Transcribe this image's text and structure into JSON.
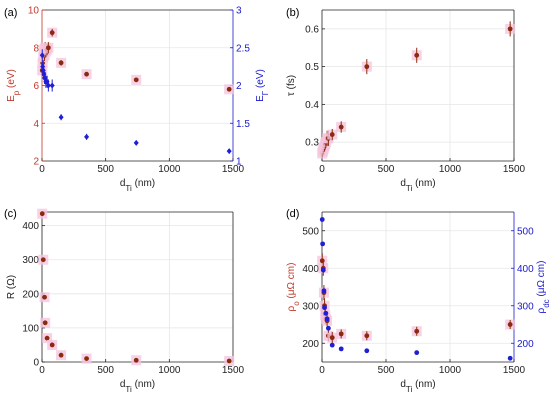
{
  "figure": {
    "panels": [
      {
        "id": "a",
        "panel_label": "(a)"
      },
      {
        "id": "b",
        "panel_label": "(b)"
      },
      {
        "id": "c",
        "panel_label": "(c)"
      },
      {
        "id": "d",
        "panel_label": "(d)"
      }
    ]
  },
  "colors": {
    "marker_red": "#8b2a0e",
    "marker_pink_halo": "#f5c6de",
    "marker_blue": "#1f1fd6",
    "axis_red": "#c0392b",
    "axis_blue": "#1a1acc",
    "grid": "#e6e6e6",
    "axis_black": "#222222"
  },
  "chart_data": [
    {
      "panel": "a",
      "type": "scatter",
      "title": "",
      "xlabel": "d_Ti (nm)",
      "xlim": [
        0,
        1500
      ],
      "xticks": [
        0,
        500,
        1000,
        1500
      ],
      "ylabel_left": "E_p (eV)",
      "ylim_left": [
        2,
        10
      ],
      "yticks_left": [
        2,
        4,
        6,
        8,
        10
      ],
      "ylabel_right": "E_Γ (eV)",
      "ylim_right": [
        1,
        3
      ],
      "yticks_right": [
        1,
        1.5,
        2,
        2.5,
        3
      ],
      "grid": true,
      "series": [
        {
          "axis": "left",
          "color": "red",
          "x": [
            2,
            5,
            10,
            15,
            20,
            25,
            30,
            40,
            50,
            80,
            150,
            350,
            740,
            1470
          ],
          "y": [
            6.8,
            7.2,
            7.5,
            7.9,
            7.6,
            8.0,
            7.8,
            7.9,
            8.0,
            8.8,
            7.2,
            6.6,
            6.3,
            5.8
          ],
          "err": [
            0.3,
            0.3,
            0.3,
            0.3,
            0.3,
            0.3,
            0.3,
            0.3,
            0.3,
            0.2,
            0.15,
            0.1,
            0.1,
            0.1
          ]
        },
        {
          "axis": "right",
          "color": "blue",
          "x": [
            2,
            5,
            10,
            15,
            20,
            25,
            30,
            40,
            50,
            80,
            150,
            350,
            740,
            1470
          ],
          "y": [
            2.4,
            2.25,
            2.2,
            2.15,
            2.1,
            2.1,
            2.05,
            2.05,
            2.0,
            2.0,
            1.58,
            1.32,
            1.24,
            1.13
          ],
          "err": [
            0.08,
            0.08,
            0.08,
            0.08,
            0.08,
            0.08,
            0.08,
            0.08,
            0.08,
            0.08,
            0.04,
            0.04,
            0.03,
            0.03
          ]
        }
      ]
    },
    {
      "panel": "b",
      "type": "scatter",
      "title": "",
      "xlabel": "d_Ti (nm)",
      "xlim": [
        0,
        1500
      ],
      "xticks": [
        0,
        500,
        1000,
        1500
      ],
      "ylabel": "τ (fs)",
      "ylim": [
        0.25,
        0.65
      ],
      "yticks": [
        0.3,
        0.4,
        0.5,
        0.6
      ],
      "grid": true,
      "series": [
        {
          "color": "red",
          "x": [
            2,
            5,
            10,
            15,
            20,
            25,
            30,
            40,
            50,
            80,
            150,
            350,
            740,
            1470
          ],
          "y": [
            0.27,
            0.275,
            0.28,
            0.285,
            0.29,
            0.295,
            0.3,
            0.31,
            0.31,
            0.32,
            0.34,
            0.5,
            0.53,
            0.6
          ],
          "err": [
            0.01,
            0.01,
            0.01,
            0.01,
            0.015,
            0.015,
            0.015,
            0.02,
            0.02,
            0.015,
            0.015,
            0.02,
            0.02,
            0.02
          ]
        }
      ]
    },
    {
      "panel": "c",
      "type": "scatter",
      "title": "",
      "xlabel": "d_Ti (nm)",
      "xlim": [
        0,
        1500
      ],
      "xticks": [
        0,
        500,
        1000,
        1500
      ],
      "ylabel": "R (Ω)",
      "ylim": [
        0,
        440
      ],
      "yticks": [
        0,
        100,
        200,
        300,
        400
      ],
      "grid": true,
      "series": [
        {
          "color": "red",
          "x": [
            2,
            10,
            20,
            25,
            40,
            80,
            150,
            350,
            740,
            1470
          ],
          "y": [
            435,
            300,
            190,
            115,
            70,
            50,
            20,
            10,
            5,
            3
          ]
        }
      ]
    },
    {
      "panel": "d",
      "type": "scatter",
      "title": "",
      "xlabel": "d_Ti (nm)",
      "xlim": [
        0,
        1500
      ],
      "xticks": [
        0,
        500,
        1000,
        1500
      ],
      "ylabel_left": "ρ_o (μΩ cm)",
      "ylim_left": [
        150,
        550
      ],
      "yticks_left": [
        200,
        300,
        400,
        500
      ],
      "ylabel_right": "ρ_dc (μΩ cm)",
      "ylim_right": [
        150,
        550
      ],
      "yticks_right": [
        200,
        300,
        400,
        500
      ],
      "grid": true,
      "series": [
        {
          "axis": "left",
          "color": "red",
          "x": [
            2,
            10,
            15,
            20,
            25,
            30,
            40,
            50,
            80,
            150,
            350,
            740,
            1470
          ],
          "y": [
            420,
            400,
            335,
            300,
            275,
            265,
            260,
            220,
            215,
            225,
            220,
            232,
            250
          ],
          "err": [
            20,
            20,
            20,
            20,
            15,
            15,
            15,
            15,
            15,
            12,
            12,
            12,
            12
          ]
        },
        {
          "axis": "right",
          "color": "blue",
          "x": [
            2,
            5,
            10,
            15,
            20,
            30,
            40,
            50,
            80,
            150,
            350,
            740,
            1470
          ],
          "y": [
            530,
            465,
            395,
            340,
            295,
            280,
            265,
            240,
            195,
            185,
            180,
            175,
            160
          ]
        }
      ]
    }
  ]
}
